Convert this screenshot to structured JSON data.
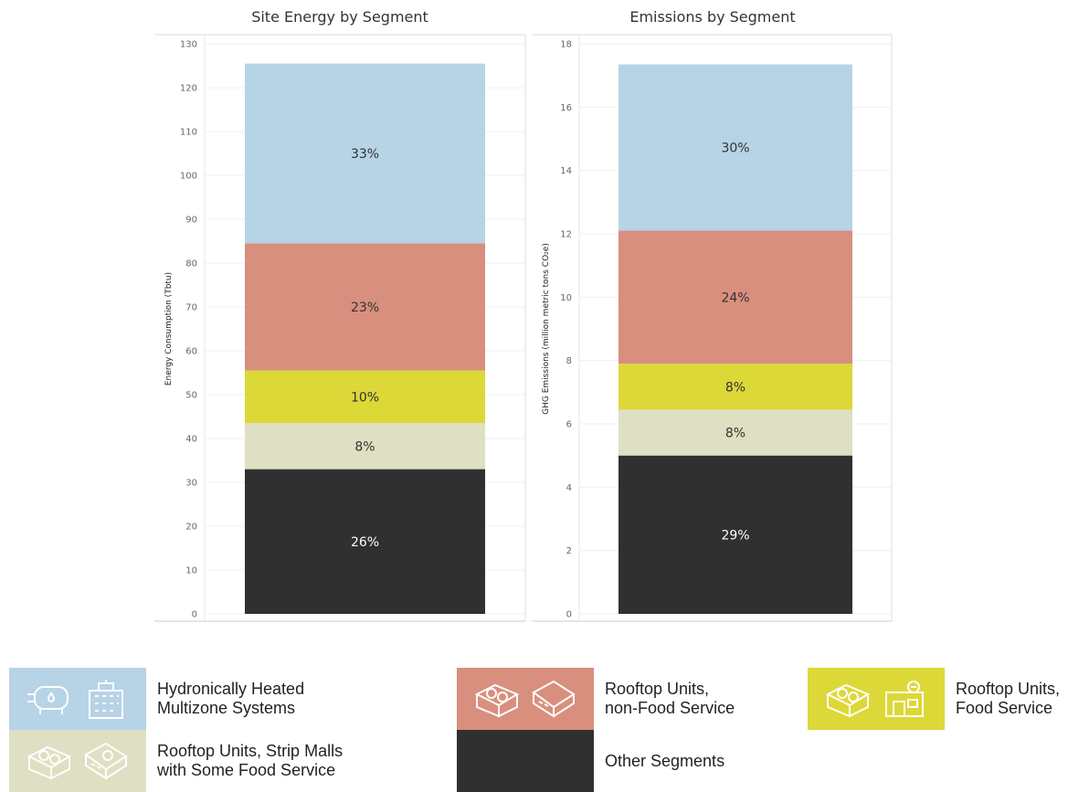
{
  "chart_data": [
    {
      "type": "bar",
      "stacked": true,
      "title": "Site Energy by Segment",
      "ylabel": "Energy Consumption (Tbtu)",
      "ylim": [
        0,
        130
      ],
      "yticks": [
        0,
        10,
        20,
        30,
        40,
        50,
        60,
        70,
        80,
        90,
        100,
        110,
        120,
        130
      ],
      "grid": true,
      "segments": [
        {
          "name": "Other Segments",
          "value": 33,
          "label": "26%",
          "color": "#303030"
        },
        {
          "name": "Rooftop Units, Strip Malls with Some Food Service",
          "value": 10.5,
          "label": "8%",
          "color": "#dfdfc3"
        },
        {
          "name": "Rooftop Units, Food Service",
          "value": 12,
          "label": "10%",
          "color": "#dcd838"
        },
        {
          "name": "Rooftop Units, non-Food Service",
          "value": 29,
          "label": "23%",
          "color": "#d88f7d"
        },
        {
          "name": "Hydronically Heated Multizone Systems",
          "value": 41,
          "label": "33%",
          "color": "#b7d3e6"
        }
      ]
    },
    {
      "type": "bar",
      "stacked": true,
      "title": "Emissions by Segment",
      "ylabel": "GHG Emissions (million metric tons CO₂e)",
      "ylim": [
        0,
        18
      ],
      "yticks": [
        0,
        2,
        4,
        6,
        8,
        10,
        12,
        14,
        16,
        18
      ],
      "grid": true,
      "segments": [
        {
          "name": "Other Segments",
          "value": 5.0,
          "label": "29%",
          "color": "#303030"
        },
        {
          "name": "Rooftop Units, Strip Malls with Some Food Service",
          "value": 1.45,
          "label": "8%",
          "color": "#dfdfc3"
        },
        {
          "name": "Rooftop Units, Food Service",
          "value": 1.45,
          "label": "8%",
          "color": "#dcd838"
        },
        {
          "name": "Rooftop Units, non-Food Service",
          "value": 4.2,
          "label": "24%",
          "color": "#d88f7d"
        },
        {
          "name": "Hydronically Heated Multizone Systems",
          "value": 5.25,
          "label": "30%",
          "color": "#b7d3e6"
        }
      ]
    }
  ],
  "legend": {
    "hydronic": {
      "label": "Hydronically Heated\nMultizone Systems",
      "color": "#b7d3e6",
      "icons": [
        "boiler-tank-icon",
        "office-building-icon"
      ]
    },
    "rtu_nonfood": {
      "label": "Rooftop Units,\nnon-Food Service",
      "color": "#d88f7d",
      "icons": [
        "rooftop-unit-icon",
        "box-building-icon"
      ]
    },
    "rtu_food": {
      "label": "Rooftop Units,\nFood Service",
      "color": "#dcd838",
      "icons": [
        "rooftop-unit-icon",
        "restaurant-icon"
      ]
    },
    "strip": {
      "label": "Rooftop Units, Strip Malls\nwith Some Food Service",
      "color": "#dfdfc3",
      "icons": [
        "rooftop-unit-icon",
        "strip-mall-food-icon"
      ]
    },
    "other": {
      "label": "Other  Segments",
      "color": "#303030",
      "icons": []
    }
  }
}
